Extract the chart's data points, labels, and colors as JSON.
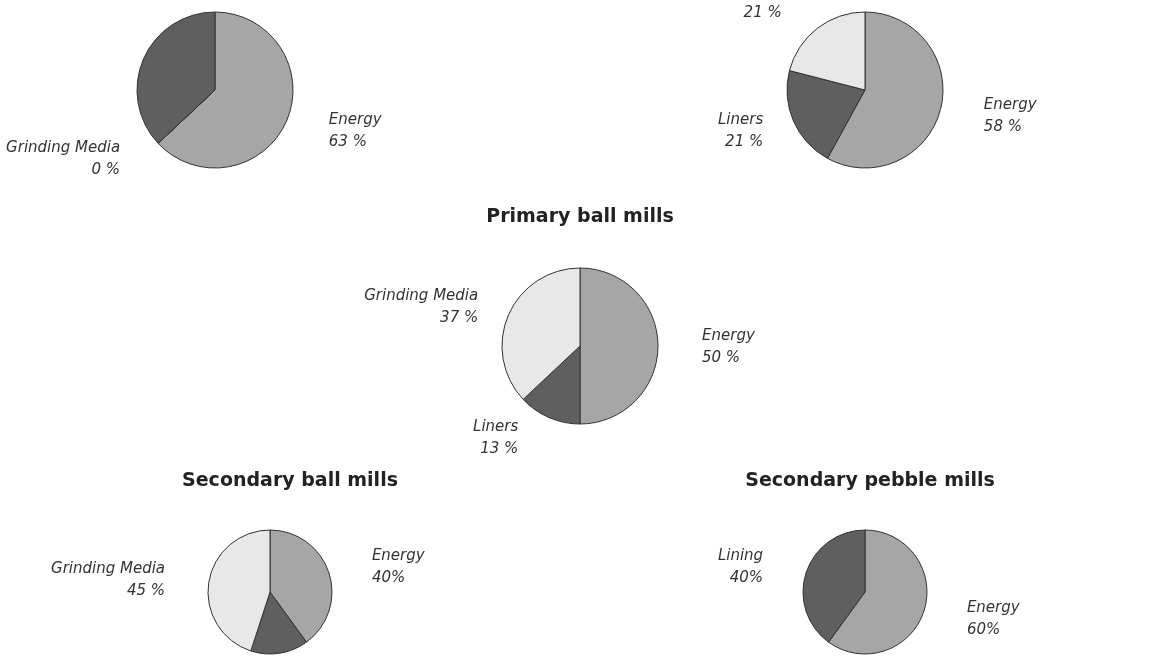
{
  "chart_data": [
    {
      "type": "pie",
      "categories": [
        "Energy",
        "Grinding Media",
        null
      ],
      "values": [
        63,
        0,
        37
      ],
      "colors": [
        "#a6a6a6",
        "#e8e8e8",
        "#5f5f5f"
      ],
      "value_labels": [
        "63 %",
        "0 %",
        null
      ]
    },
    {
      "type": "pie",
      "categories": [
        "Energy",
        "Liners",
        null
      ],
      "values": [
        58,
        21,
        21
      ],
      "colors": [
        "#a6a6a6",
        "#5f5f5f",
        "#e8e8e8"
      ],
      "value_labels": [
        "58 %",
        "21 %",
        "21 %"
      ]
    },
    {
      "type": "pie",
      "title": "Primary ball mills",
      "categories": [
        "Energy",
        "Liners",
        "Grinding Media"
      ],
      "values": [
        50,
        13,
        37
      ],
      "colors": [
        "#a6a6a6",
        "#5f5f5f",
        "#e8e8e8"
      ],
      "value_labels": [
        "50 %",
        "13 %",
        "37 %"
      ]
    },
    {
      "type": "pie",
      "title": "Secondary ball mills",
      "categories": [
        "Energy",
        null,
        "Grinding Media"
      ],
      "values": [
        40,
        15,
        45
      ],
      "colors": [
        "#a6a6a6",
        "#5f5f5f",
        "#e8e8e8"
      ],
      "value_labels": [
        "40%",
        null,
        "45 %"
      ]
    },
    {
      "type": "pie",
      "title": "Secondary pebble mills",
      "categories": [
        "Energy",
        "Lining"
      ],
      "values": [
        60,
        40
      ],
      "colors": [
        "#a6a6a6",
        "#5f5f5f"
      ],
      "value_labels": [
        "60%",
        "40%"
      ]
    }
  ]
}
